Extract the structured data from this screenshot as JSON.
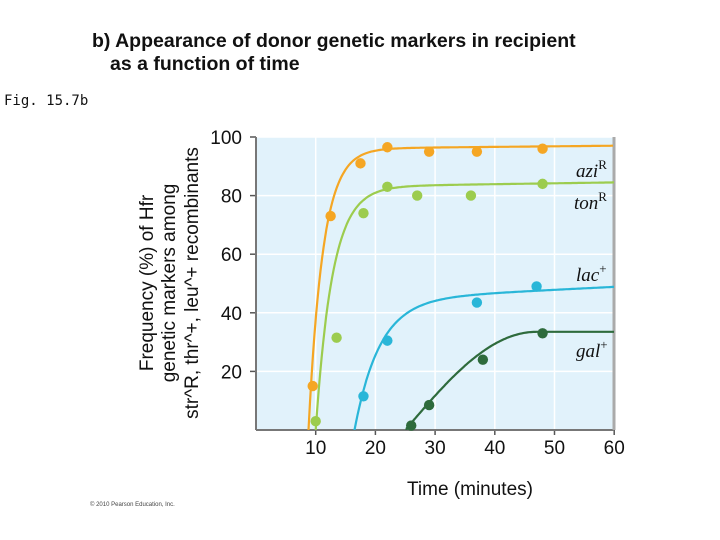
{
  "header": {
    "title_line1": "b) Appearance of donor genetic markers in recipient",
    "title_line2": "as a function of time",
    "fig_label": "Fig. 15.7b",
    "copyright": "© 2010 Pearson Education, Inc."
  },
  "chart_data": {
    "type": "line",
    "title": "Appearance of donor genetic markers in recipient as a function of time",
    "xlabel": "Time (minutes)",
    "ylabel": {
      "line1": "Frequency (%) of Hfr",
      "line2": "genetic markers among",
      "line3": "str^R, thr^+, leu^+ recombinants"
    },
    "xlim": [
      0,
      60
    ],
    "ylim": [
      0,
      100
    ],
    "x_ticks": [
      10,
      20,
      30,
      40,
      50,
      60
    ],
    "y_ticks": [
      20,
      40,
      60,
      80,
      100
    ],
    "series": [
      {
        "name": "aziR",
        "label_base": "azi",
        "label_sup": "R",
        "color": "#f5a623",
        "curve": {
          "start": 8.8,
          "plateau": 96,
          "tau": 2.4,
          "slope": 0.02
        },
        "points": [
          [
            9.5,
            15
          ],
          [
            12.5,
            73
          ],
          [
            17.5,
            91
          ],
          [
            22,
            96.5
          ],
          [
            29,
            95
          ],
          [
            37,
            95
          ],
          [
            48,
            96
          ]
        ]
      },
      {
        "name": "tonR",
        "label_base": "ton",
        "label_sup": "R",
        "color": "#9ccc4e",
        "curve": {
          "start": 10,
          "plateau": 83,
          "tau": 2.8,
          "slope": 0.03
        },
        "points": [
          [
            10,
            3
          ],
          [
            13.5,
            31.5
          ],
          [
            18,
            74
          ],
          [
            22,
            83
          ],
          [
            27,
            80
          ],
          [
            36,
            80
          ],
          [
            48,
            84
          ]
        ]
      },
      {
        "name": "lac+",
        "label_base": "lac",
        "label_sup": "+",
        "color": "#29b6d8",
        "curve": {
          "start": 16.5,
          "plateau": 44.5,
          "tau": 4.2,
          "slope": 0.1
        },
        "points": [
          [
            18,
            11.5
          ],
          [
            22,
            30.5
          ],
          [
            37,
            43.5
          ],
          [
            47,
            49
          ]
        ]
      },
      {
        "name": "gal+",
        "label_base": "gal",
        "label_sup": "+",
        "color": "#2e6b3c",
        "curve": {
          "start": 25,
          "plateau": 33.5,
          "tau": 12,
          "endTau": 47
        },
        "points": [
          [
            26,
            1.5
          ],
          [
            29,
            8.5
          ],
          [
            38,
            24
          ],
          [
            48,
            33
          ]
        ]
      }
    ]
  }
}
